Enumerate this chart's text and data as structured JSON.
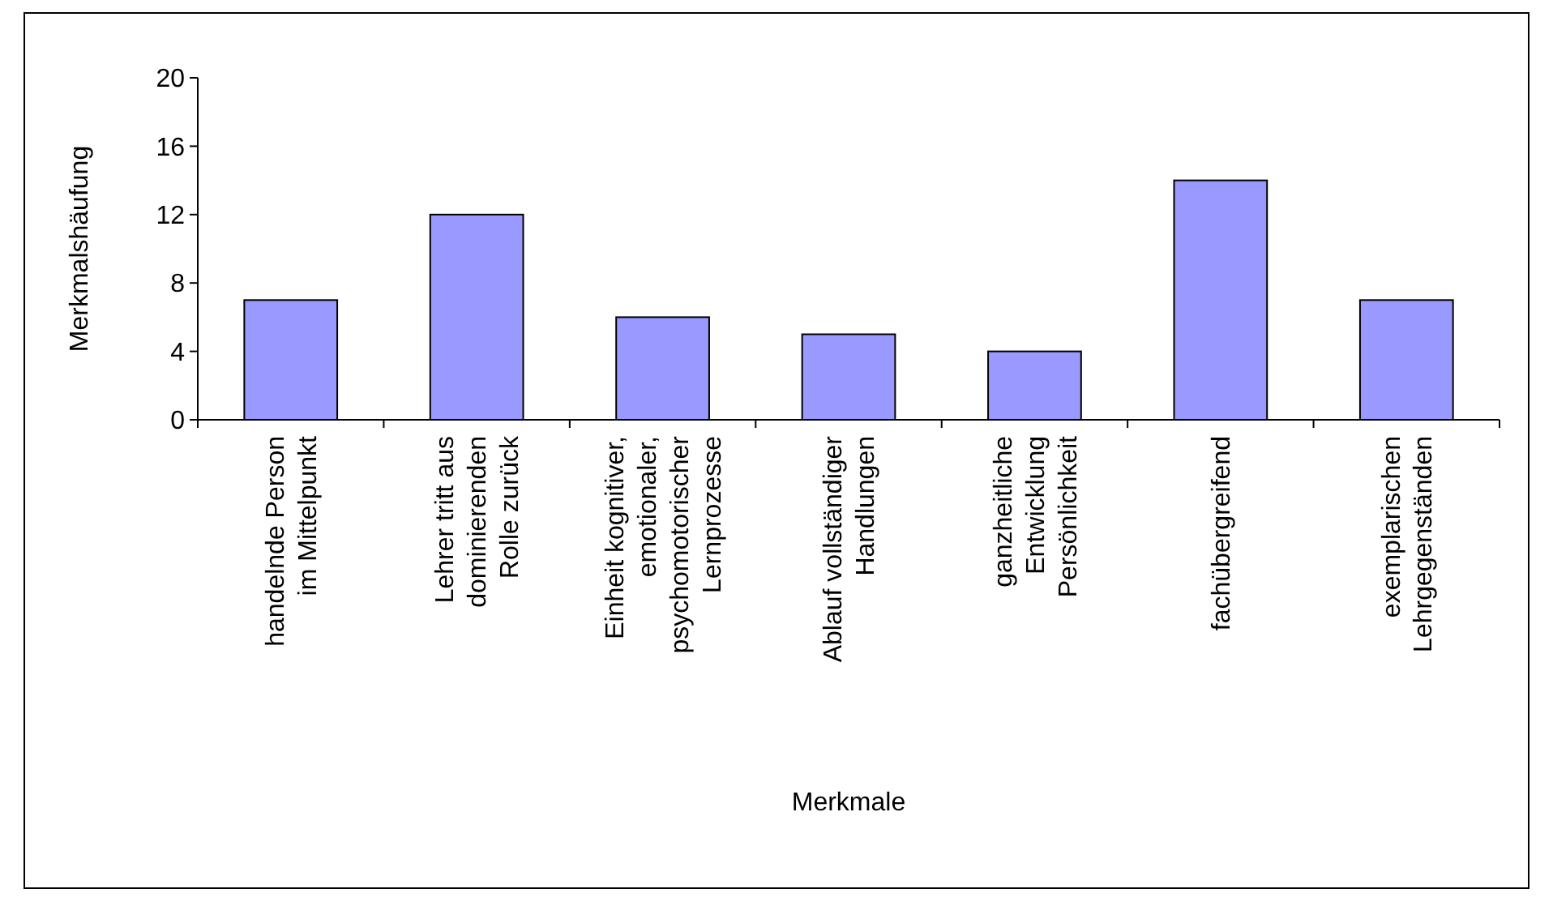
{
  "chart_data": {
    "type": "bar",
    "xlabel": "Merkmale",
    "ylabel": "Merkmalshäufung",
    "categories": [
      "handelnde Person\nim Mittelpunkt",
      "Lehrer tritt aus\ndominierenden\nRolle zurück",
      "Einheit kognitiver,\nemotionaler,\npsychomotorischer\nLernprozesse",
      "Ablauf vollständiger\nHandlungen",
      "ganzheitliche\nEntwicklung\nPersönlichkeit",
      "fachübergreifend",
      "exemplarischen\nLehrgegenständen"
    ],
    "values": [
      7,
      12,
      6,
      5,
      4,
      14,
      7
    ],
    "color": "#9999ff",
    "ylim": [
      0,
      20
    ],
    "yticks": [
      0,
      4,
      8,
      12,
      16,
      20
    ],
    "grid": false
  }
}
